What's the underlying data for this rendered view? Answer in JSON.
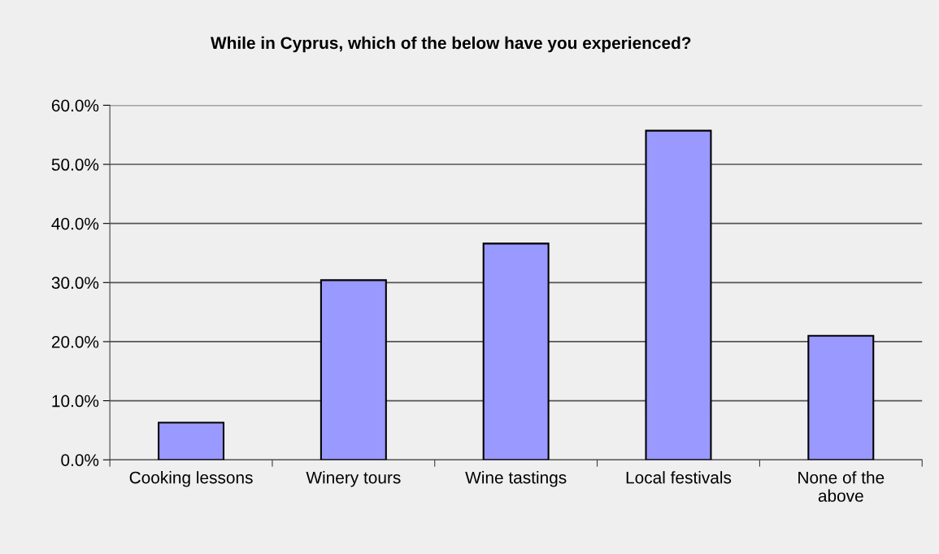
{
  "chart_data": {
    "type": "bar",
    "title": "While in Cyprus, which of the below have you experienced?",
    "categories": [
      "Cooking lessons",
      "Winery tours",
      "Wine tastings",
      "Local festivals",
      "None of the\nabove"
    ],
    "values": [
      6.3,
      30.4,
      36.6,
      55.7,
      21.0
    ],
    "color": "#9999ff",
    "ylim": [
      0,
      60
    ],
    "yticks": [
      {
        "value": 0,
        "label": "0.0%"
      },
      {
        "value": 10,
        "label": "10.0%"
      },
      {
        "value": 20,
        "label": "20.0%"
      },
      {
        "value": 30,
        "label": "30.0%"
      },
      {
        "value": 40,
        "label": "40.0%"
      },
      {
        "value": 50,
        "label": "50.0%"
      },
      {
        "value": 60,
        "label": "60.0%"
      }
    ],
    "grid": "y",
    "legend": false
  }
}
